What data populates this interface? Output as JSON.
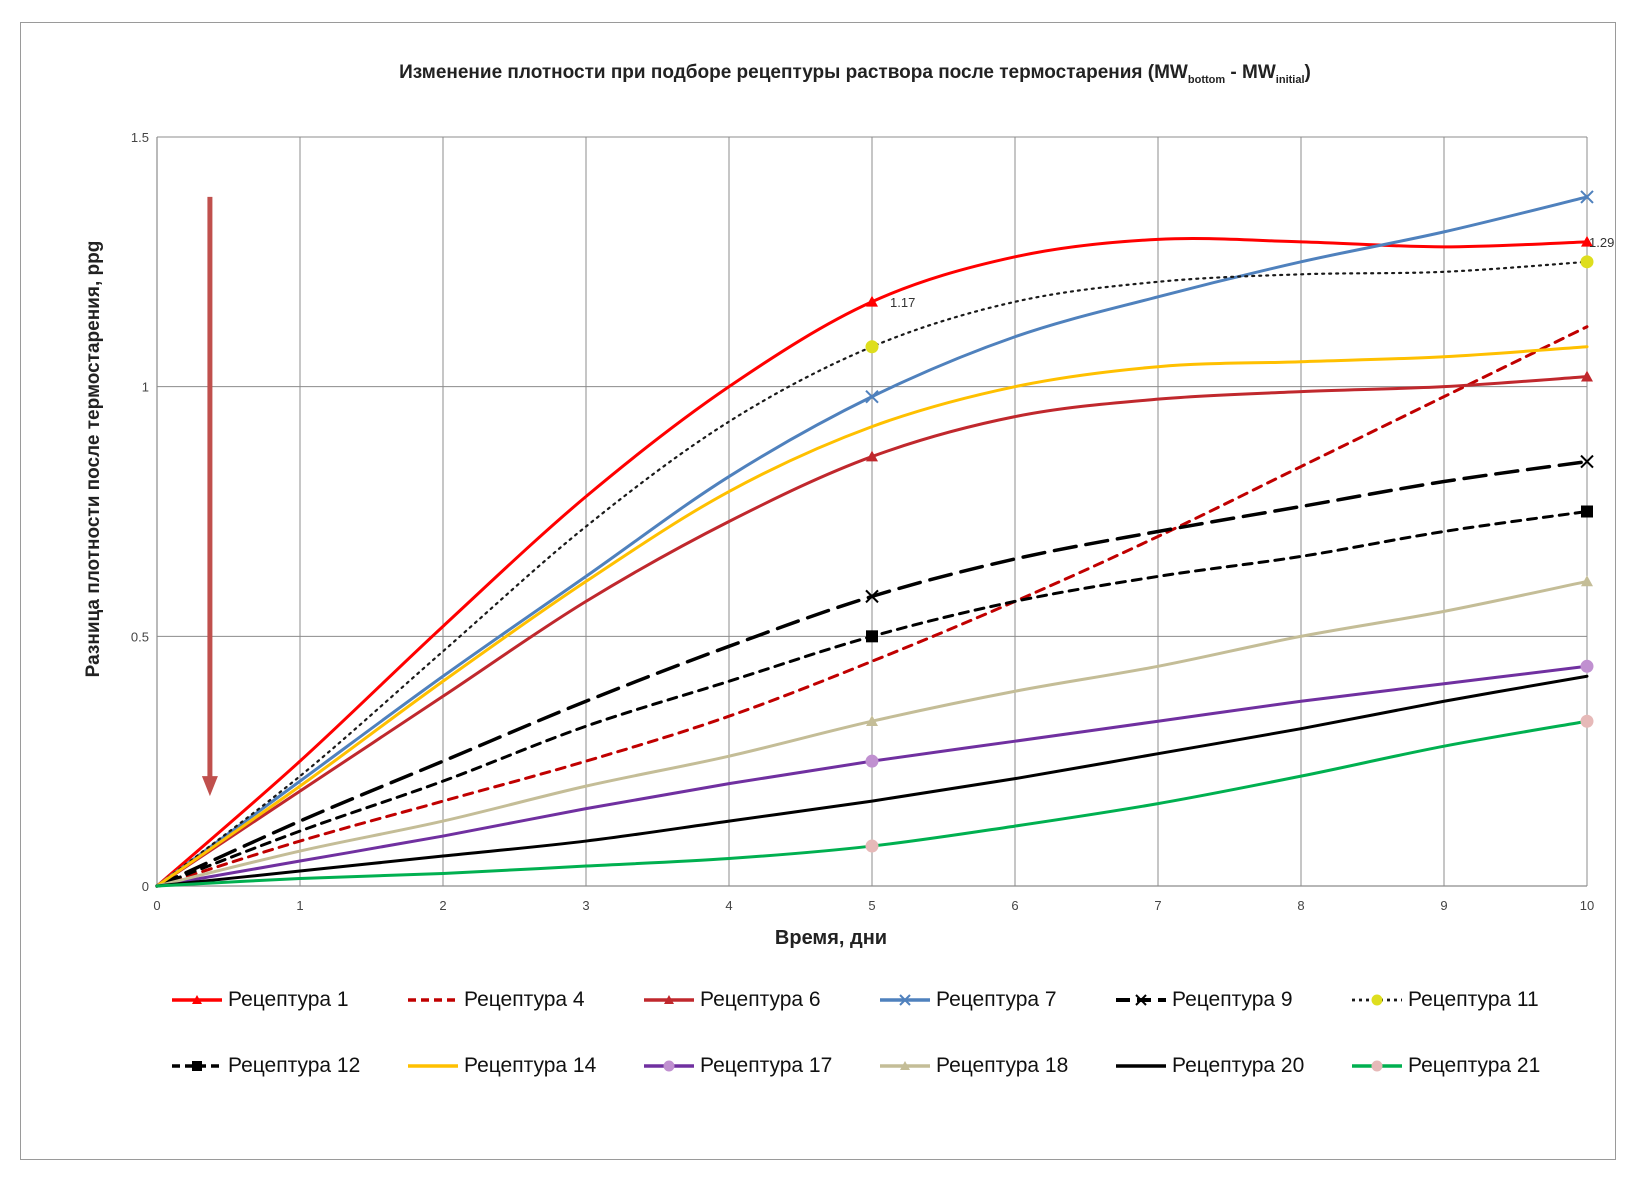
{
  "chart_data": {
    "type": "line",
    "title_main": "Изменение плотности при подборе рецептуры раствора после термостарения (MW",
    "title_sub1": "bottom",
    "title_mid": " - MW",
    "title_sub2": "initial",
    "title_end": ")",
    "xlabel": "Время, дни",
    "ylabel": "Разница плотности после термостарения, ppg",
    "xlim": [
      0,
      10
    ],
    "ylim": [
      0,
      1.5
    ],
    "x_ticks": [
      "0",
      "1",
      "2",
      "3",
      "4",
      "5",
      "6",
      "7",
      "8",
      "9",
      "10"
    ],
    "y_ticks": [
      "0",
      "0.5",
      "1",
      "1.5"
    ],
    "grid": true,
    "annotations": [
      {
        "text": "1.17",
        "x": 5,
        "y": 1.17
      },
      {
        "text": "1.29",
        "x": 10,
        "y": 1.29
      }
    ],
    "arrow": {
      "from_y": 1.38,
      "to_y": 0.18,
      "x": 0.37,
      "color": "#c0504d"
    },
    "series": [
      {
        "name": "Рецептура 1",
        "color": "#ff0000",
        "dash": "solid",
        "marker": "triangle",
        "points": [
          [
            0,
            0
          ],
          [
            1,
            0.25
          ],
          [
            2,
            0.52
          ],
          [
            3,
            0.78
          ],
          [
            4,
            1.0
          ],
          [
            5,
            1.17
          ],
          [
            6,
            1.26
          ],
          [
            7,
            1.295
          ],
          [
            8,
            1.29
          ],
          [
            9,
            1.28
          ],
          [
            10,
            1.29
          ]
        ],
        "marked": [
          [
            5,
            1.17
          ],
          [
            10,
            1.29
          ]
        ]
      },
      {
        "name": "Рецептура 4",
        "color": "#c00000",
        "dash": "dash",
        "marker": "none",
        "points": [
          [
            0,
            0
          ],
          [
            1,
            0.09
          ],
          [
            2,
            0.17
          ],
          [
            3,
            0.25
          ],
          [
            4,
            0.34
          ],
          [
            5,
            0.45
          ],
          [
            6,
            0.57
          ],
          [
            7,
            0.7
          ],
          [
            8,
            0.84
          ],
          [
            9,
            0.98
          ],
          [
            10,
            1.12
          ]
        ],
        "marked": []
      },
      {
        "name": "Рецептура 6",
        "color": "#c0282d",
        "dash": "solid",
        "marker": "triangle",
        "points": [
          [
            0,
            0
          ],
          [
            1,
            0.19
          ],
          [
            2,
            0.38
          ],
          [
            3,
            0.57
          ],
          [
            4,
            0.73
          ],
          [
            5,
            0.86
          ],
          [
            6,
            0.94
          ],
          [
            7,
            0.975
          ],
          [
            8,
            0.99
          ],
          [
            9,
            1.0
          ],
          [
            10,
            1.02
          ]
        ],
        "marked": [
          [
            5,
            0.86
          ],
          [
            10,
            1.02
          ]
        ]
      },
      {
        "name": "Рецептура 7",
        "color": "#4f81bd",
        "dash": "solid",
        "marker": "x",
        "points": [
          [
            0,
            0
          ],
          [
            1,
            0.21
          ],
          [
            2,
            0.42
          ],
          [
            3,
            0.62
          ],
          [
            4,
            0.82
          ],
          [
            5,
            0.98
          ],
          [
            6,
            1.1
          ],
          [
            7,
            1.18
          ],
          [
            8,
            1.25
          ],
          [
            9,
            1.31
          ],
          [
            10,
            1.38
          ]
        ],
        "marked": [
          [
            5,
            0.98
          ],
          [
            10,
            1.38
          ]
        ]
      },
      {
        "name": "Рецептура 9",
        "color": "#000000",
        "dash": "longdash",
        "marker": "x",
        "points": [
          [
            0,
            0
          ],
          [
            1,
            0.13
          ],
          [
            2,
            0.25
          ],
          [
            3,
            0.37
          ],
          [
            4,
            0.48
          ],
          [
            5,
            0.58
          ],
          [
            6,
            0.655
          ],
          [
            7,
            0.71
          ],
          [
            8,
            0.76
          ],
          [
            9,
            0.81
          ],
          [
            10,
            0.85
          ]
        ],
        "marked": [
          [
            5,
            0.58
          ],
          [
            10,
            0.85
          ]
        ]
      },
      {
        "name": "Рецептура 11",
        "color": "#1a1a1a",
        "dash": "dot",
        "marker": "circle",
        "marker_fill": "#dede1e",
        "points": [
          [
            0,
            0
          ],
          [
            1,
            0.22
          ],
          [
            2,
            0.47
          ],
          [
            3,
            0.72
          ],
          [
            4,
            0.93
          ],
          [
            5,
            1.08
          ],
          [
            6,
            1.17
          ],
          [
            7,
            1.21
          ],
          [
            8,
            1.225
          ],
          [
            9,
            1.23
          ],
          [
            10,
            1.25
          ]
        ],
        "marked": [
          [
            5,
            1.08
          ],
          [
            10,
            1.25
          ]
        ]
      },
      {
        "name": "Рецептура 12",
        "color": "#000000",
        "dash": "dash",
        "marker": "square",
        "points": [
          [
            0,
            0
          ],
          [
            1,
            0.11
          ],
          [
            2,
            0.21
          ],
          [
            3,
            0.32
          ],
          [
            4,
            0.41
          ],
          [
            5,
            0.5
          ],
          [
            6,
            0.57
          ],
          [
            7,
            0.62
          ],
          [
            8,
            0.66
          ],
          [
            9,
            0.71
          ],
          [
            10,
            0.75
          ]
        ],
        "marked": [
          [
            5,
            0.5
          ],
          [
            10,
            0.75
          ]
        ]
      },
      {
        "name": "Рецептура 14",
        "color": "#ffc000",
        "dash": "solid",
        "marker": "none",
        "points": [
          [
            0,
            0
          ],
          [
            1,
            0.2
          ],
          [
            2,
            0.41
          ],
          [
            3,
            0.61
          ],
          [
            4,
            0.79
          ],
          [
            5,
            0.92
          ],
          [
            6,
            1.0
          ],
          [
            7,
            1.04
          ],
          [
            8,
            1.05
          ],
          [
            9,
            1.06
          ],
          [
            10,
            1.08
          ]
        ],
        "marked": []
      },
      {
        "name": "Рецептура 17",
        "color": "#7030a0",
        "dash": "solid",
        "marker": "circle",
        "marker_fill": "#c090d0",
        "points": [
          [
            0,
            0
          ],
          [
            1,
            0.05
          ],
          [
            2,
            0.1
          ],
          [
            3,
            0.155
          ],
          [
            4,
            0.205
          ],
          [
            5,
            0.25
          ],
          [
            6,
            0.29
          ],
          [
            7,
            0.33
          ],
          [
            8,
            0.37
          ],
          [
            9,
            0.405
          ],
          [
            10,
            0.44
          ]
        ],
        "marked": [
          [
            5,
            0.25
          ],
          [
            10,
            0.44
          ]
        ]
      },
      {
        "name": "Рецептура 18",
        "color": "#c4bd97",
        "dash": "solid",
        "marker": "triangle",
        "points": [
          [
            0,
            0
          ],
          [
            1,
            0.07
          ],
          [
            2,
            0.13
          ],
          [
            3,
            0.2
          ],
          [
            4,
            0.26
          ],
          [
            5,
            0.33
          ],
          [
            6,
            0.39
          ],
          [
            7,
            0.44
          ],
          [
            8,
            0.5
          ],
          [
            9,
            0.55
          ],
          [
            10,
            0.61
          ]
        ],
        "marked": [
          [
            5,
            0.33
          ],
          [
            10,
            0.61
          ]
        ]
      },
      {
        "name": "Рецептура 20",
        "color": "#000000",
        "dash": "solid",
        "marker": "none",
        "points": [
          [
            0,
            0
          ],
          [
            1,
            0.03
          ],
          [
            2,
            0.06
          ],
          [
            3,
            0.09
          ],
          [
            4,
            0.13
          ],
          [
            5,
            0.17
          ],
          [
            6,
            0.215
          ],
          [
            7,
            0.265
          ],
          [
            8,
            0.315
          ],
          [
            9,
            0.37
          ],
          [
            10,
            0.42
          ]
        ],
        "marked": []
      },
      {
        "name": "Рецептура 21",
        "color": "#00b050",
        "dash": "solid",
        "marker": "circle",
        "marker_fill": "#e6b9b8",
        "points": [
          [
            0,
            0
          ],
          [
            1,
            0.015
          ],
          [
            2,
            0.025
          ],
          [
            3,
            0.04
          ],
          [
            4,
            0.055
          ],
          [
            5,
            0.08
          ],
          [
            6,
            0.12
          ],
          [
            7,
            0.165
          ],
          [
            8,
            0.22
          ],
          [
            9,
            0.28
          ],
          [
            10,
            0.33
          ]
        ],
        "marked": [
          [
            5,
            0.08
          ],
          [
            10,
            0.33
          ]
        ]
      }
    ]
  }
}
